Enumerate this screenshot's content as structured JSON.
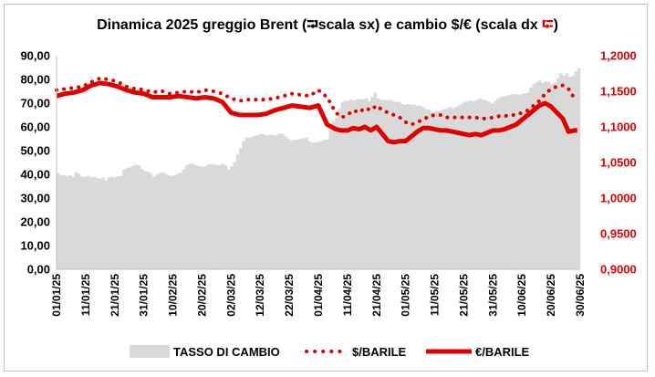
{
  "chart_data": {
    "type": "bar",
    "title": "Dinamica 2025 greggio Brent (⮒scala sx) e cambio $/€ (scala dx ⮓)",
    "title_parts": {
      "before_left": "Dinamica 2025 greggio Brent (",
      "left_icon": "left-arrow-circle-icon",
      "after_left": "scala sx) e cambio $/€ (scala dx ",
      "right_icon": "right-arrow-circle-icon",
      "end": ")"
    },
    "y_left": {
      "min": 0,
      "max": 90,
      "step": 10,
      "ticks": [
        "0,00",
        "10,00",
        "20,00",
        "30,00",
        "40,00",
        "50,00",
        "60,00",
        "70,00",
        "80,00",
        "90,00"
      ]
    },
    "y_right": {
      "min": 0.9,
      "max": 1.2,
      "step": 0.05,
      "ticks": [
        "0,9000",
        "0,9500",
        "1,0000",
        "1,0500",
        "1,1000",
        "1,1500",
        "1,2000"
      ]
    },
    "x_ticks": [
      "01/01/25",
      "11/01/25",
      "21/01/25",
      "31/01/25",
      "10/02/25",
      "20/02/25",
      "02/03/25",
      "12/03/25",
      "22/03/25",
      "01/04/25",
      "11/04/25",
      "21/04/25",
      "01/05/25",
      "11/05/25",
      "21/05/25",
      "31/05/25",
      "10/06/25",
      "20/06/25",
      "30/06/25"
    ],
    "x_range_days": [
      0,
      180
    ],
    "grid": false,
    "legend_position": "bottom",
    "legend": [
      "TASSO DI CAMBIO",
      "$/BARILE",
      "€/BARILE"
    ],
    "colors": {
      "bars": "#d9d9d9",
      "usd": "#e00000",
      "eur": "#e00000",
      "right_axis": "#e00000"
    },
    "series": [
      {
        "name": "TASSO DI CAMBIO",
        "axis": "right",
        "kind": "bar",
        "values": [
          1.035,
          1.032,
          1.032,
          1.031,
          1.032,
          1.03,
          1.036,
          1.034,
          1.03,
          1.03,
          1.031,
          1.029,
          1.03,
          1.028,
          1.027,
          1.029,
          1.025,
          1.029,
          1.03,
          1.029,
          1.031,
          1.031,
          1.04,
          1.042,
          1.043,
          1.045,
          1.047,
          1.046,
          1.041,
          1.038,
          1.037,
          1.035,
          1.03,
          1.033,
          1.035,
          1.036,
          1.034,
          1.032,
          1.031,
          1.032,
          1.034,
          1.036,
          1.04,
          1.046,
          1.048,
          1.048,
          1.046,
          1.045,
          1.044,
          1.045,
          1.047,
          1.048,
          1.047,
          1.047,
          1.046,
          1.048,
          1.046,
          1.04,
          1.045,
          1.05,
          1.062,
          1.07,
          1.08,
          1.085,
          1.085,
          1.086,
          1.088,
          1.089,
          1.09,
          1.089,
          1.088,
          1.089,
          1.088,
          1.088,
          1.091,
          1.09,
          1.087,
          1.083,
          1.081,
          1.082,
          1.082,
          1.083,
          1.084,
          1.085,
          1.08,
          1.078,
          1.078,
          1.079,
          1.08,
          1.082,
          1.082,
          1.096,
          1.108,
          1.113,
          1.125,
          1.135,
          1.137,
          1.137,
          1.138,
          1.137,
          1.139,
          1.139,
          1.139,
          1.14,
          1.136,
          1.142,
          1.148,
          1.14,
          1.138,
          1.138,
          1.137,
          1.138,
          1.136,
          1.135,
          1.135,
          1.132,
          1.131,
          1.132,
          1.131,
          1.131,
          1.13,
          1.13,
          1.128,
          1.125,
          1.124,
          1.12,
          1.122,
          1.122,
          1.123,
          1.125,
          1.126,
          1.128,
          1.126,
          1.128,
          1.13,
          1.133,
          1.135,
          1.136,
          1.137,
          1.136,
          1.138,
          1.14,
          1.138,
          1.137,
          1.135,
          1.133,
          1.136,
          1.14,
          1.142,
          1.143,
          1.144,
          1.145,
          1.146,
          1.146,
          1.145,
          1.146,
          1.147,
          1.148,
          1.155,
          1.16,
          1.163,
          1.165,
          1.162,
          1.164,
          1.163,
          1.16,
          1.162,
          1.168,
          1.175,
          1.172,
          1.175,
          1.17,
          1.172,
          1.178,
          1.182
        ]
      },
      {
        "name": "$/BARILE",
        "axis": "left",
        "kind": "dotted-line",
        "x": [
          0,
          3,
          6,
          9,
          12,
          15,
          18,
          21,
          24,
          27,
          30,
          33,
          36,
          39,
          42,
          45,
          48,
          51,
          54,
          57,
          60,
          63,
          66,
          69,
          72,
          75,
          78,
          81,
          84,
          87,
          90,
          93,
          96,
          98,
          100,
          102,
          104,
          106,
          108,
          110,
          112,
          114,
          116,
          118,
          120,
          122,
          124,
          126,
          128,
          130,
          132,
          134,
          136,
          138,
          140,
          142,
          144,
          146,
          148,
          150,
          152,
          154,
          156,
          158,
          160,
          162,
          164,
          166,
          168,
          170,
          172,
          174,
          176,
          178,
          179
        ],
        "y": [
          75.5,
          76,
          76.5,
          77,
          79,
          80.5,
          80,
          79,
          77,
          76,
          75.7,
          74.5,
          75.2,
          74,
          74.5,
          75,
          74.5,
          75.5,
          75,
          74,
          72,
          71,
          71.5,
          71.5,
          71.5,
          72,
          73,
          74,
          73.5,
          73,
          75.5,
          72.5,
          66,
          64,
          65,
          67,
          66,
          68,
          67,
          69,
          67,
          66,
          65,
          64,
          62,
          61,
          62,
          63,
          64.5,
          65,
          65,
          64,
          64,
          64,
          64,
          64,
          64,
          63.5,
          63.5,
          64,
          64.5,
          64.5,
          65,
          65,
          66,
          67,
          69,
          71,
          74,
          76,
          77,
          77.5,
          76,
          72,
          71
        ]
      },
      {
        "name": "€/BARILE",
        "axis": "left",
        "kind": "thick-line",
        "x": [
          0,
          3,
          6,
          9,
          12,
          15,
          18,
          21,
          24,
          27,
          30,
          33,
          36,
          39,
          42,
          45,
          48,
          51,
          54,
          57,
          60,
          63,
          66,
          69,
          72,
          75,
          78,
          81,
          84,
          87,
          90,
          93,
          96,
          98,
          100,
          102,
          104,
          106,
          108,
          110,
          112,
          114,
          116,
          118,
          120,
          122,
          124,
          126,
          128,
          130,
          132,
          134,
          136,
          138,
          140,
          142,
          144,
          146,
          148,
          150,
          152,
          154,
          156,
          158,
          160,
          162,
          164,
          166,
          168,
          170,
          172,
          174,
          176,
          178,
          179
        ],
        "y": [
          73,
          74,
          74.5,
          75.5,
          77.5,
          78.5,
          78,
          77,
          75.5,
          74.5,
          74,
          72.5,
          72.5,
          72.5,
          73,
          72.5,
          72,
          72.5,
          72,
          70.5,
          66,
          65,
          65,
          65,
          65.5,
          67,
          68,
          69,
          68.5,
          68,
          69,
          61,
          59,
          58.5,
          58.5,
          59.5,
          59,
          60,
          58.5,
          60,
          57,
          54,
          53.5,
          54,
          54,
          56,
          58,
          59.5,
          59.5,
          59,
          58.5,
          58.5,
          58,
          57.5,
          57,
          56.5,
          57,
          56.5,
          57.5,
          58.5,
          58.5,
          59,
          60,
          61,
          63,
          65,
          67,
          69,
          70,
          68.5,
          66,
          63.5,
          58,
          58.5,
          58.5
        ]
      }
    ]
  }
}
